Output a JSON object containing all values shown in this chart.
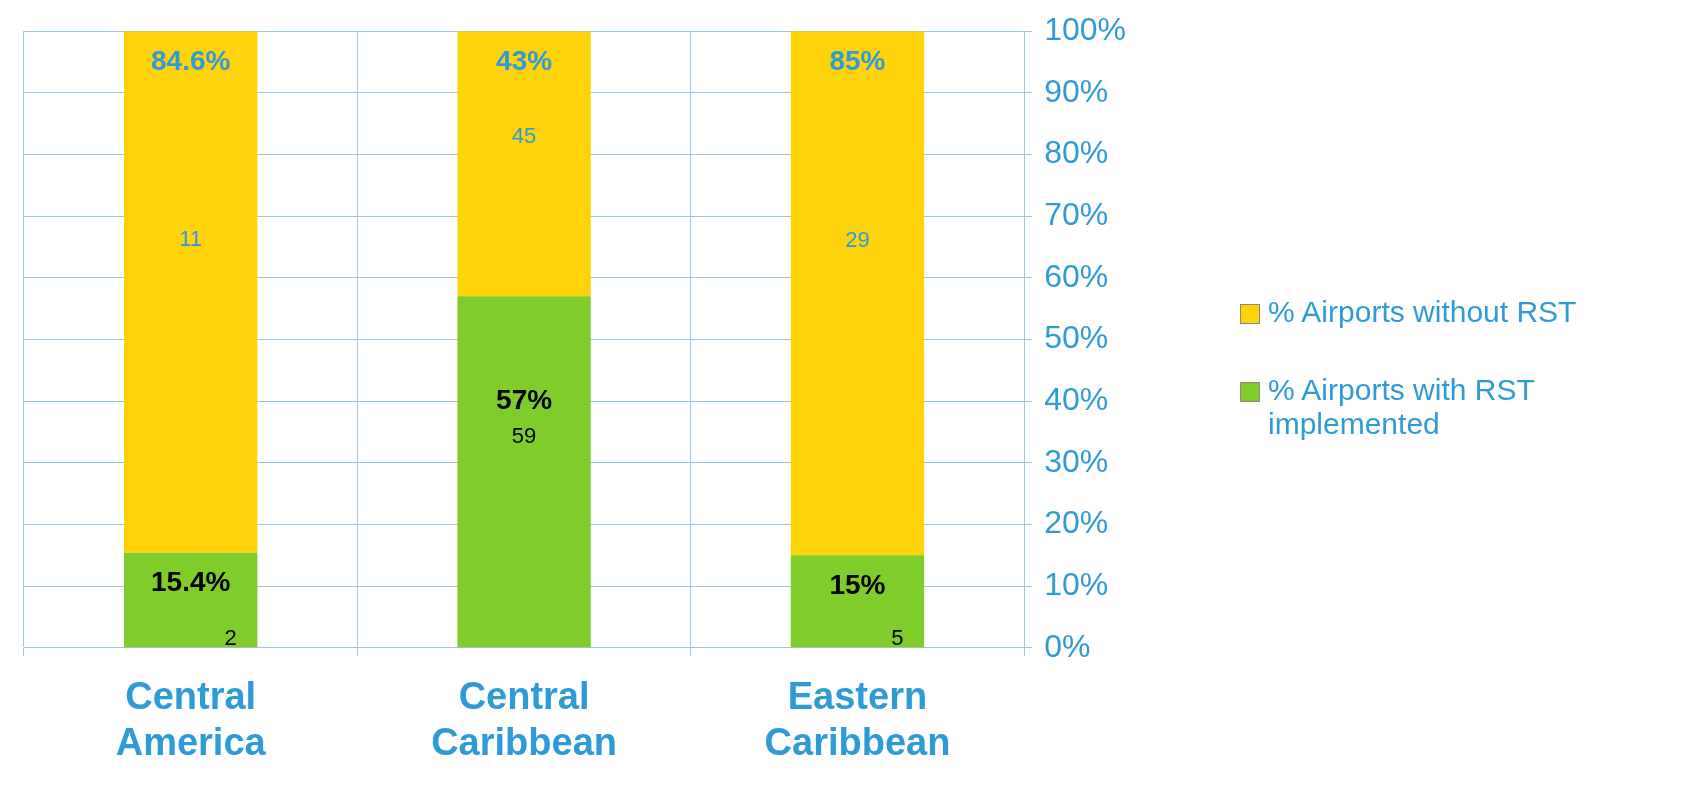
{
  "chart_data": {
    "type": "bar",
    "stacked": true,
    "categories": [
      "Central America",
      "Central Caribbean",
      "Eastern Caribbean"
    ],
    "series": [
      {
        "name": "% Airports with RST implemented",
        "color": "#7fcc2a",
        "values": [
          15.4,
          57,
          15
        ],
        "value_labels": [
          "15.4%",
          "57%",
          "15%"
        ]
      },
      {
        "name": "% Airports without RST",
        "color": "#ffd30a",
        "values": [
          84.6,
          43,
          85
        ],
        "value_labels": [
          "84.6%",
          "43%",
          "85%"
        ]
      }
    ],
    "ylim": [
      0,
      100
    ],
    "yticks": [
      {
        "value": 0,
        "label": "0%"
      },
      {
        "value": 10,
        "label": "10%"
      },
      {
        "value": 20,
        "label": "20%"
      },
      {
        "value": 30,
        "label": "30%"
      },
      {
        "value": 40,
        "label": "40%"
      },
      {
        "value": 50,
        "label": "50%"
      },
      {
        "value": 60,
        "label": "60%"
      },
      {
        "value": 70,
        "label": "70%"
      },
      {
        "value": 80,
        "label": "80%"
      },
      {
        "value": 90,
        "label": "90%"
      },
      {
        "value": 100,
        "label": "100%"
      }
    ],
    "grid": true,
    "legend": "right",
    "annotations": [
      "2",
      "11",
      "59",
      "45",
      "5",
      "29"
    ]
  }
}
